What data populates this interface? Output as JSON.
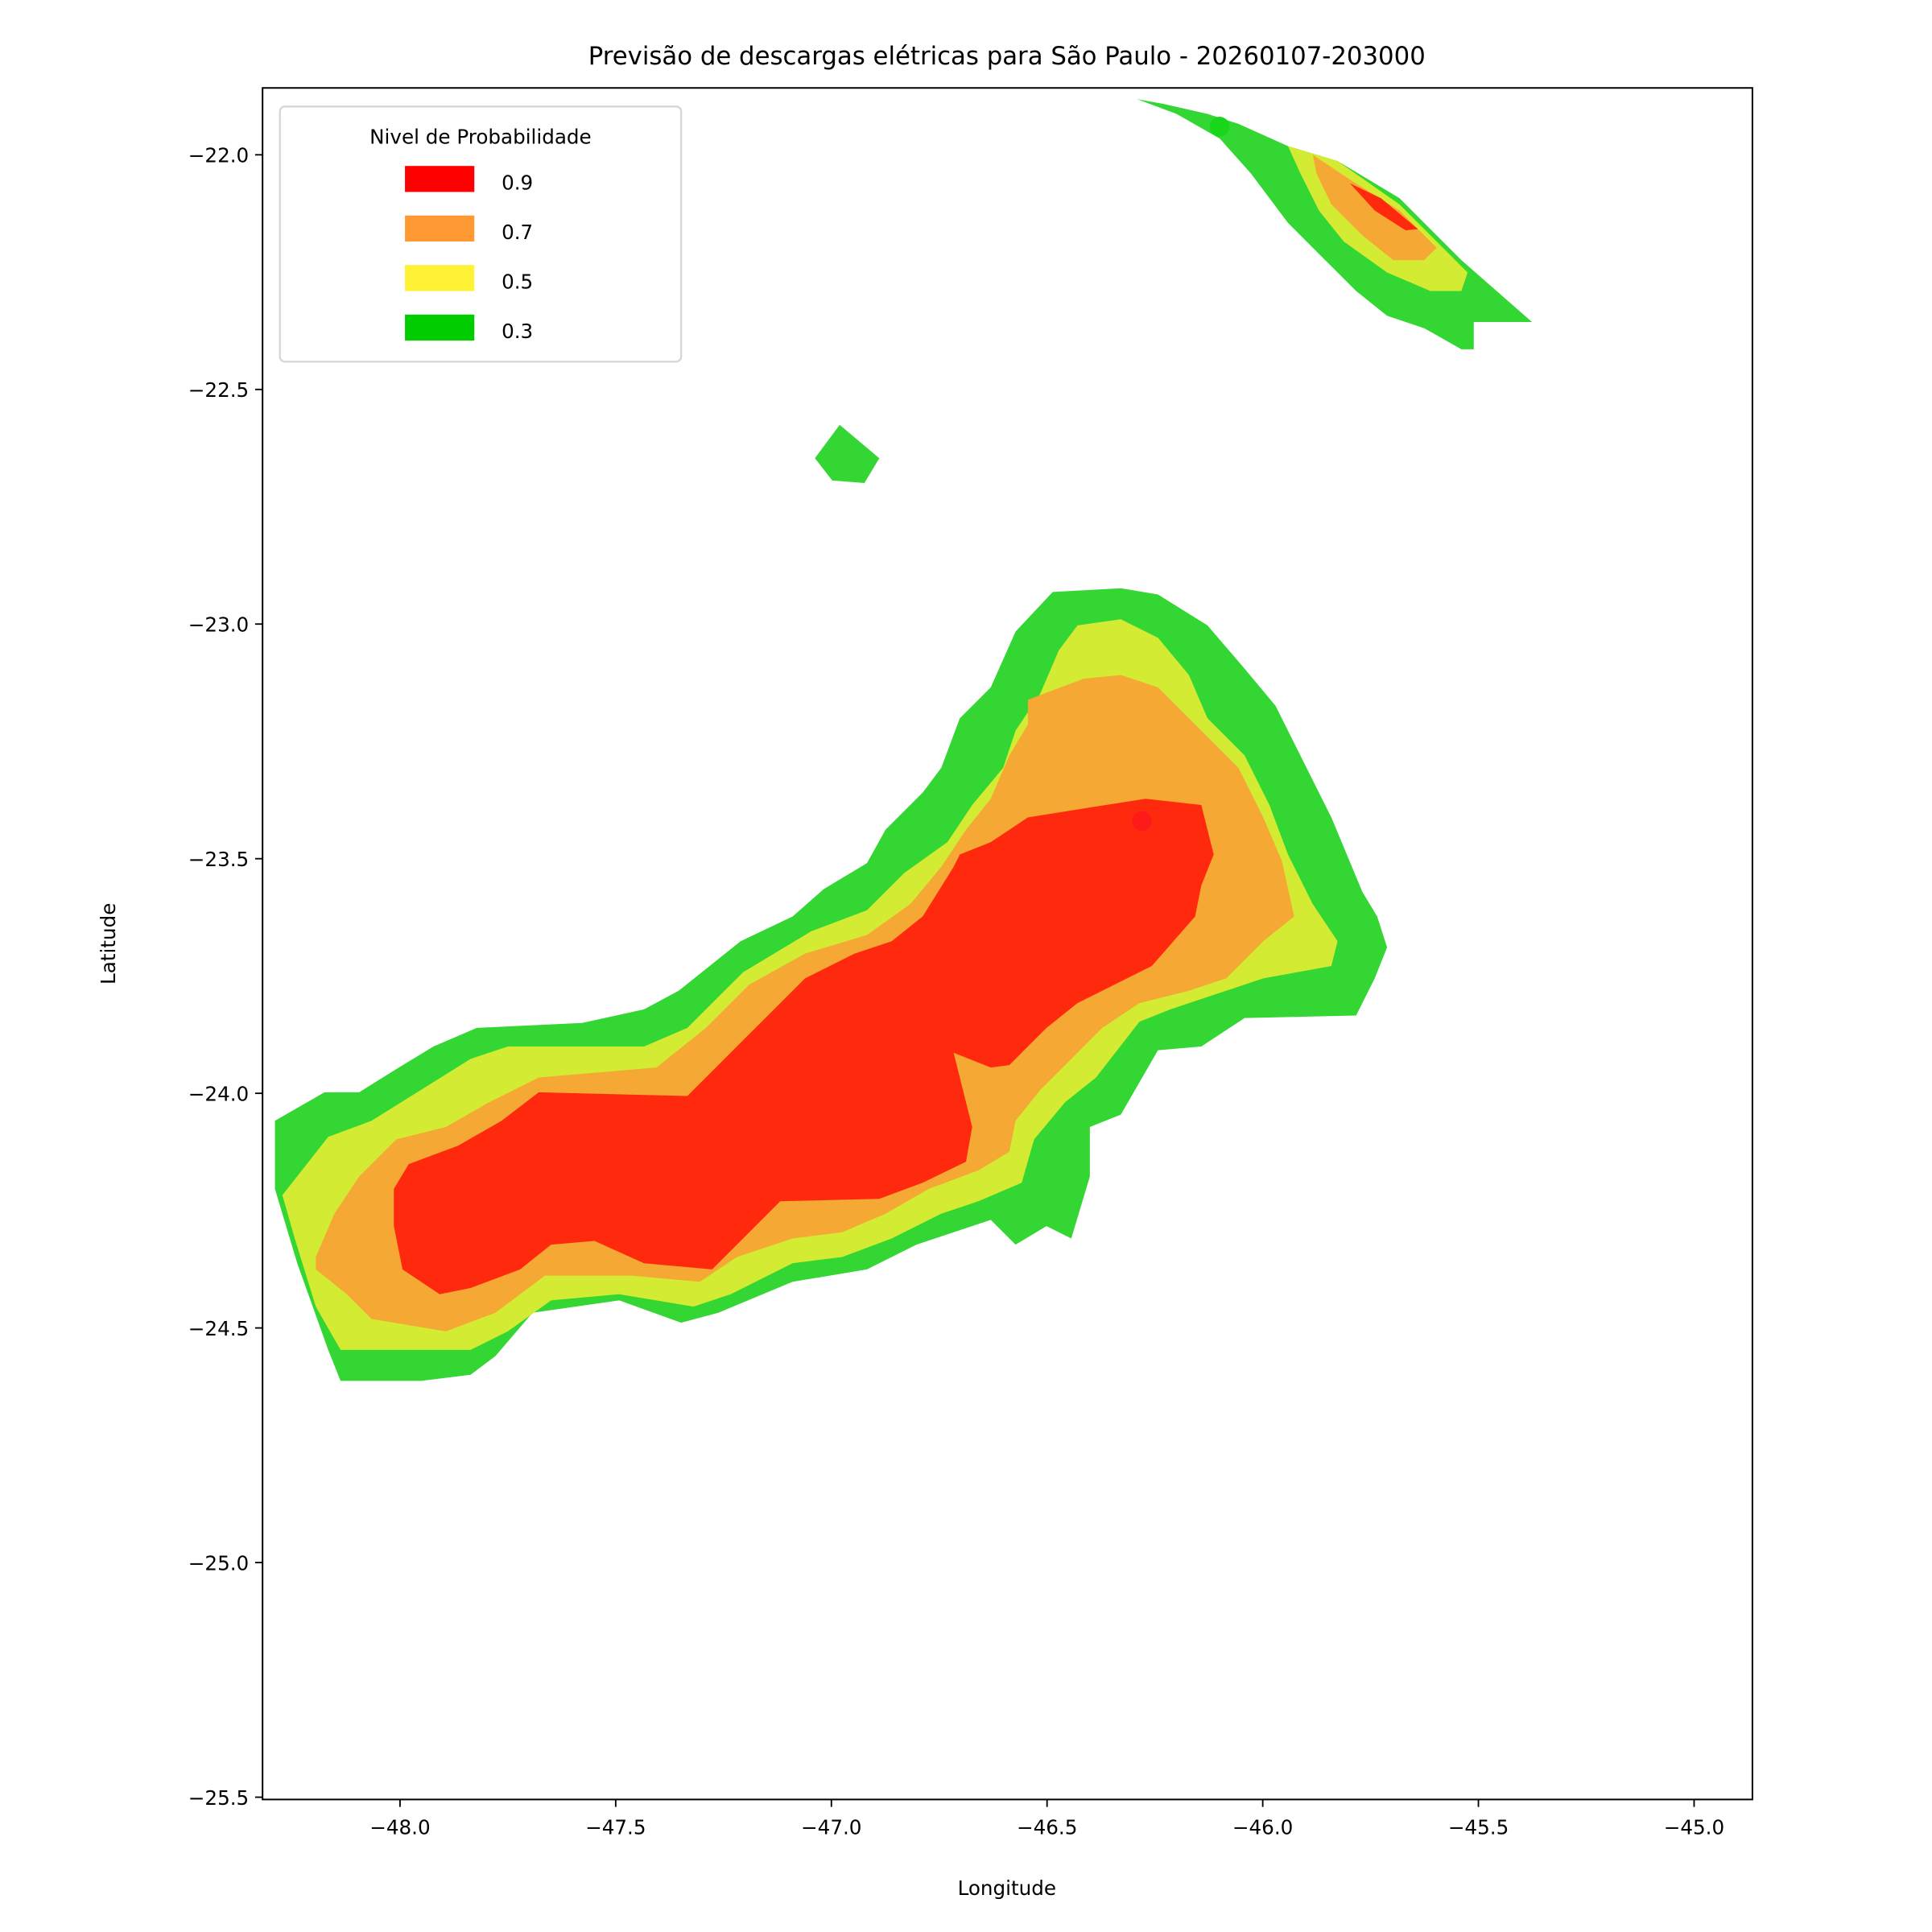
{
  "chart_data": {
    "type": "contour",
    "title": "Previsão de descargas elétricas para São Paulo - 20260107-203000",
    "xlabel": "Longitude",
    "ylabel": "Latitude",
    "xlim": [
      -48.32,
      -44.87
    ],
    "ylim": [
      -25.52,
      -21.86
    ],
    "xticks": [
      -48.0,
      -47.5,
      -47.0,
      -46.5,
      -46.0,
      -45.5,
      -45.0
    ],
    "xtick_labels": [
      "−48.0",
      "−47.5",
      "−47.0",
      "−46.5",
      "−46.0",
      "−45.5",
      "−45.0"
    ],
    "yticks": [
      -22.0,
      -22.5,
      -23.0,
      -23.5,
      -24.0,
      -24.5,
      -25.0,
      -25.5
    ],
    "ytick_labels": [
      "−22.0",
      "−22.5",
      "−23.0",
      "−23.5",
      "−24.0",
      "−24.5",
      "−25.0",
      "−25.5"
    ],
    "grid": false,
    "legend": {
      "title": "Nivel de Probabilidade",
      "placement": "top-left",
      "entries": [
        {
          "label": "0.9",
          "color": "#ff0000"
        },
        {
          "label": "0.7",
          "color": "#ff9933"
        },
        {
          "label": "0.5",
          "color": "#fff133"
        },
        {
          "label": "0.3",
          "color": "#00cc00"
        }
      ]
    },
    "contour_levels": [
      0.3,
      0.5,
      0.7,
      0.9
    ],
    "fill_colors": {
      "0.3": "#33d633",
      "0.5": "#d4eb33",
      "0.7": "#f5a833",
      "0.9": "#ff2a0e"
    },
    "points": [
      {
        "lon": -46.28,
        "lat": -23.42,
        "level": 0.9,
        "color": "#ff1a1a"
      },
      {
        "lon": -46.1,
        "lat": -21.94,
        "level": 0.3,
        "color": "#1ad61a"
      }
    ]
  }
}
